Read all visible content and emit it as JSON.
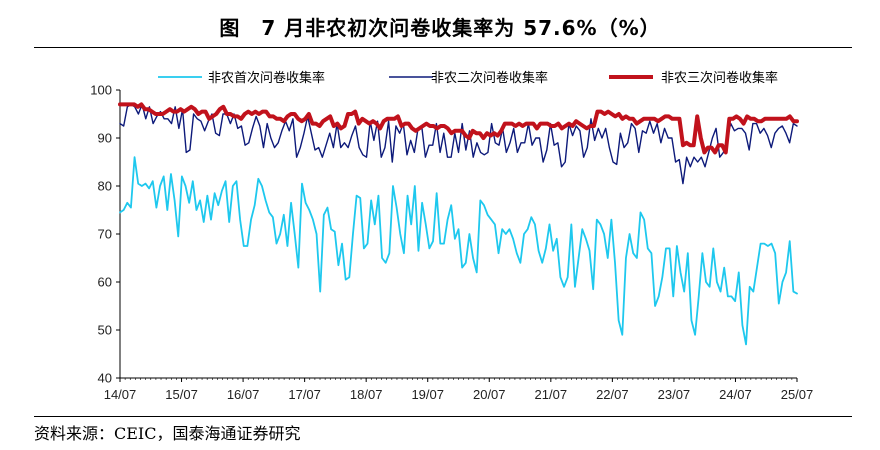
{
  "title": "图　7 月非农初次问卷收集率为 57.6%（%）",
  "source": "资料来源：CEIC，国泰海通证券研究",
  "chart_data": {
    "type": "line",
    "title": "图　7 月非农初次问卷收集率为 57.6%（%）",
    "xlabel": "",
    "ylabel": "",
    "ylim": [
      40,
      100
    ],
    "yticks": [
      40,
      50,
      60,
      70,
      80,
      90,
      100
    ],
    "xticks": [
      "14/07",
      "15/07",
      "16/07",
      "17/07",
      "18/07",
      "19/07",
      "20/07",
      "21/07",
      "22/07",
      "23/07",
      "24/07",
      "25/07"
    ],
    "xrange": [
      "2014-07",
      "2025-07"
    ],
    "legend_position": "top",
    "grid": false,
    "series": [
      {
        "name": "非农首次问卷收集率",
        "color": "#1EC8EE",
        "width": 1.8,
        "start": "2014-07",
        "values": [
          74.5,
          75,
          76.5,
          75.5,
          86,
          80.5,
          80,
          80.5,
          79.5,
          81,
          75.5,
          80,
          82,
          75,
          82.5,
          77,
          69.5,
          82,
          80,
          76.5,
          81,
          75,
          77,
          72.5,
          78,
          73,
          78.5,
          76,
          79,
          81,
          72.5,
          80,
          81,
          73,
          67.5,
          67.5,
          73,
          76,
          81.5,
          80,
          77,
          74.5,
          73.5,
          68,
          70,
          74,
          67.5,
          76.5,
          70,
          63,
          80.5,
          76.5,
          75,
          73,
          70,
          58,
          74,
          75.5,
          71,
          70.5,
          63.5,
          68,
          60.5,
          61,
          70,
          78,
          77.5,
          67,
          68,
          77,
          72,
          78,
          65,
          64,
          66,
          80,
          75.5,
          70,
          66,
          78,
          72,
          80,
          66.5,
          76.5,
          72,
          67,
          68.5,
          78.5,
          68,
          68,
          73,
          76,
          69,
          71,
          63,
          64,
          70,
          65,
          62,
          77,
          76,
          74,
          73,
          72,
          66,
          71,
          70,
          71,
          69,
          66,
          64,
          70,
          71,
          73.5,
          72,
          66.5,
          64,
          67,
          72,
          66.5,
          69,
          61,
          59,
          61,
          72,
          59,
          65,
          71,
          69,
          66.5,
          58.5,
          73,
          72,
          70,
          65,
          73,
          64,
          52,
          49,
          65,
          70,
          66,
          65,
          74.5,
          73,
          67,
          66,
          55,
          57,
          61,
          67,
          67,
          57,
          67.5,
          62,
          58,
          66,
          52,
          49,
          57,
          66,
          60,
          59,
          67,
          60,
          58,
          63,
          57,
          57,
          56,
          62,
          51,
          47,
          59,
          58,
          63,
          68,
          68,
          67.5,
          68,
          66,
          55.5,
          60,
          62,
          68.5,
          58,
          57.6
        ]
      },
      {
        "name": "非农二次问卷收集率",
        "color": "#0D1A7A",
        "width": 1.4,
        "start": "2014-07",
        "values": [
          93,
          92.5,
          96.5,
          97,
          96.5,
          95,
          97,
          94,
          96.5,
          93,
          94.5,
          95.5,
          94,
          94,
          93,
          96.5,
          92,
          96,
          87,
          87.5,
          95,
          94,
          93.5,
          91.5,
          93.5,
          95,
          91,
          90.5,
          95,
          95,
          93,
          95,
          92,
          92.5,
          88.5,
          89,
          92,
          94.5,
          92.5,
          88,
          93,
          90,
          88,
          89,
          91.5,
          93.5,
          91.5,
          94,
          86,
          88,
          91,
          94.5,
          91,
          87.5,
          88,
          86,
          88.5,
          91,
          88,
          93,
          88,
          89,
          88,
          90.5,
          92.5,
          88,
          86.5,
          86,
          93.5,
          89.5,
          93.5,
          86,
          88,
          93.5,
          85,
          92.5,
          91,
          93,
          86.5,
          89.5,
          87,
          92,
          92.5,
          86,
          88.5,
          88.5,
          93,
          87,
          91,
          86,
          86,
          91,
          87,
          93,
          87.5,
          91.5,
          86,
          89,
          87,
          86.5,
          87,
          93,
          89,
          88.5,
          92,
          87,
          89,
          92,
          87,
          89,
          89,
          93,
          88.5,
          90,
          90,
          85,
          87.5,
          93,
          88.5,
          89,
          84,
          85,
          93,
          90.5,
          92.5,
          91.5,
          86,
          88,
          94,
          89.5,
          92,
          90,
          92,
          88,
          85,
          84.5,
          91,
          88,
          89,
          93,
          92,
          87,
          91.5,
          91,
          93.5,
          91,
          93,
          89,
          92,
          90,
          90,
          85,
          85.5,
          80.5,
          86,
          84,
          86,
          85,
          86,
          84,
          87,
          90,
          92,
          86,
          87,
          90,
          93,
          91.5,
          92,
          92,
          91,
          87.5,
          93,
          93,
          91,
          92,
          90.5,
          88,
          91,
          92,
          92.5,
          91,
          89,
          93,
          92.5
        ]
      },
      {
        "name": "非农三次问卷收集率",
        "color": "#C1121C",
        "width": 4,
        "start": "2014-07",
        "values": [
          97,
          97,
          97,
          97,
          97,
          96.5,
          97,
          96,
          96,
          95.5,
          95,
          95,
          95,
          95.5,
          96,
          95.5,
          95.5,
          96,
          95.5,
          96,
          96.5,
          96,
          95,
          95.5,
          95.5,
          94,
          94.5,
          95,
          96,
          96.5,
          95,
          95,
          94.5,
          94.5,
          94,
          95,
          95.5,
          95,
          95.5,
          95,
          95.5,
          95.5,
          94.5,
          94.5,
          94,
          94,
          93.5,
          94.5,
          95,
          95,
          94,
          93.5,
          94,
          95,
          93,
          93,
          92.5,
          93.5,
          94,
          94.5,
          92.5,
          93,
          92,
          92.5,
          95,
          95,
          95.5,
          93,
          94,
          93.5,
          93,
          93.5,
          93,
          92,
          93.5,
          94,
          94,
          94,
          94.5,
          92.5,
          93,
          93,
          92,
          91.5,
          92,
          92.5,
          93,
          92.5,
          92.5,
          92,
          92.5,
          92.5,
          92,
          91,
          91.5,
          91.5,
          91.5,
          90.5,
          90,
          91.5,
          91,
          91,
          90,
          91,
          90.5,
          91,
          90.5,
          91.5,
          93,
          93,
          93,
          92.5,
          93,
          92.5,
          93,
          93,
          93,
          92,
          93,
          93,
          93,
          92.5,
          92.5,
          93,
          92,
          92.5,
          93,
          92.5,
          93.5,
          93,
          92.5,
          92,
          92.5,
          92.5,
          95.5,
          95.5,
          95,
          95.5,
          95,
          94.5,
          95,
          94,
          94.5,
          94,
          94,
          93,
          93.5,
          94,
          94,
          94,
          94,
          93.5,
          94,
          94.5,
          94.5,
          94,
          94,
          94,
          88.5,
          89,
          88.5,
          88.5,
          94.5,
          90,
          87,
          88,
          88,
          87,
          88.5,
          88.5,
          87,
          94,
          94,
          94.5,
          94,
          93,
          94.5,
          94,
          94,
          93.5,
          93.5,
          94,
          94,
          94,
          94,
          94,
          94,
          94,
          94.5,
          93.5,
          93.5
        ]
      }
    ]
  }
}
